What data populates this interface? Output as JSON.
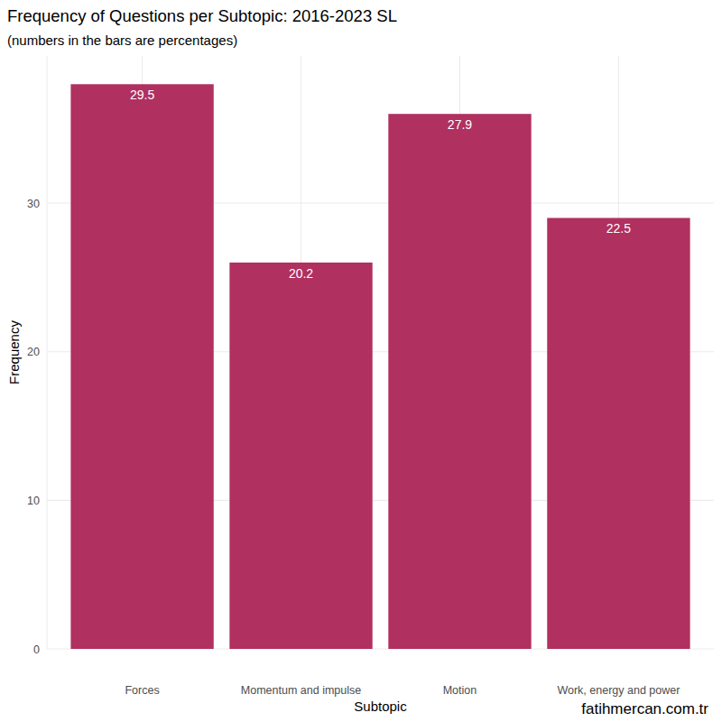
{
  "chart_data": {
    "type": "bar",
    "title": "Frequency of Questions per Subtopic: 2016-2023 SL",
    "subtitle": "(numbers in the bars are percentages)",
    "x_label": "Subtopic",
    "y_label": "Frequency",
    "caption": "fatihmercan.com.tr",
    "categories": [
      "Forces",
      "Momentum and impulse",
      "Motion",
      "Work, energy and power"
    ],
    "values": [
      38,
      26,
      36,
      29
    ],
    "percentages": [
      29.5,
      20.2,
      27.9,
      22.5
    ],
    "color": "#b03060",
    "ylim": [
      0,
      39.9
    ],
    "yticks": [
      0,
      10,
      20,
      30
    ],
    "grid": true
  }
}
